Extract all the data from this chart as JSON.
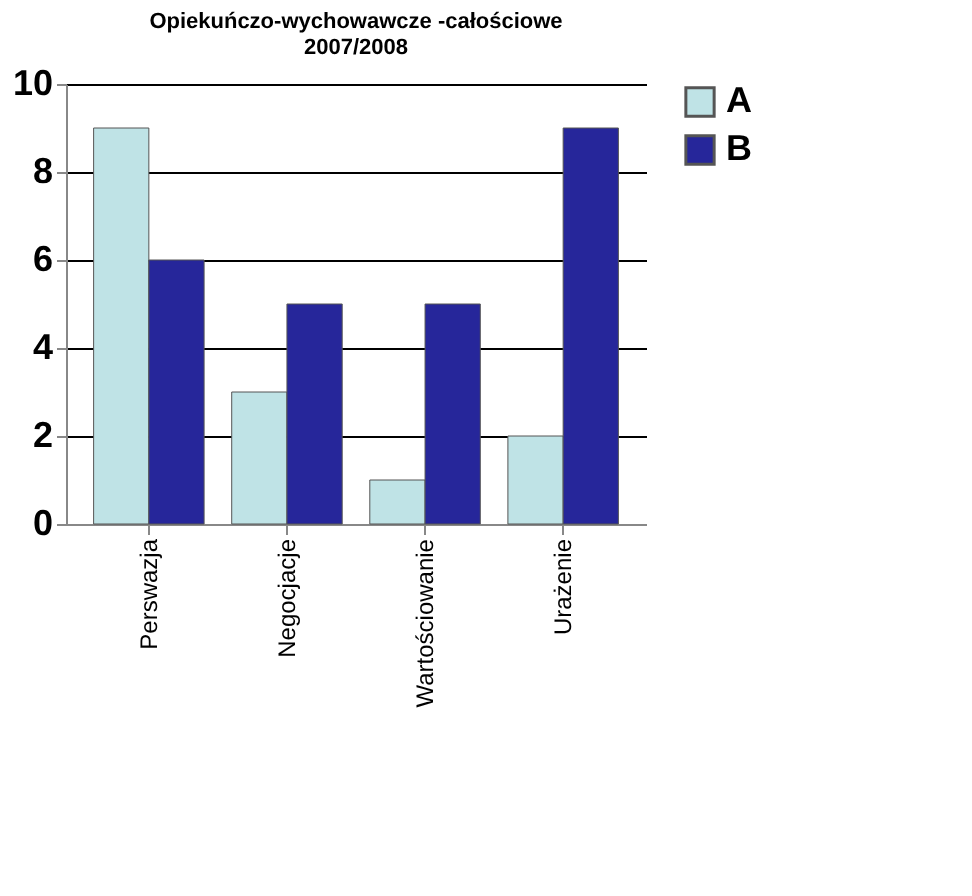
{
  "chart_data": {
    "type": "bar",
    "title": [
      "Opiekuńczo-wychowawcze -całościowe",
      "2007/2008"
    ],
    "categories": [
      "Perswazja",
      "Negocjacje",
      "Wartościowanie",
      "Urażenie"
    ],
    "series": [
      {
        "name": "A",
        "color": "#bfe3e6",
        "values": [
          9,
          3,
          1,
          2
        ]
      },
      {
        "name": "B",
        "color": "#26269a",
        "values": [
          6,
          5,
          5,
          9
        ]
      }
    ],
    "ylim": [
      0,
      10
    ],
    "yticks": [
      0,
      2,
      4,
      6,
      8,
      10
    ],
    "grid": "y",
    "legend": "right"
  }
}
